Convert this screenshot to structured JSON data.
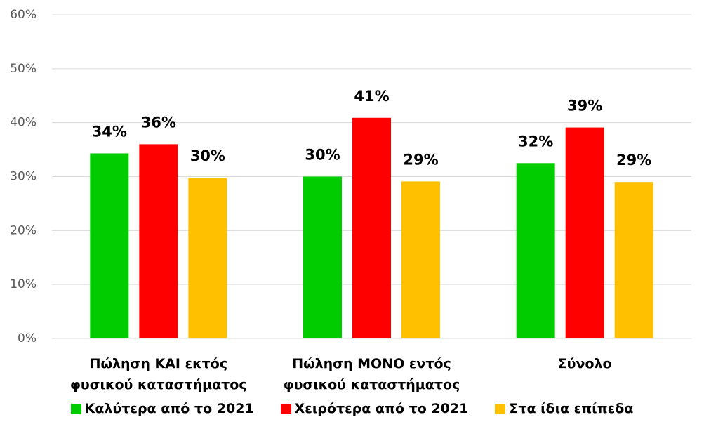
{
  "chart_data": {
    "type": "bar",
    "categories": [
      "Πώληση ΚΑΙ εκτός φυσικού καταστήματος",
      "Πώληση ΜΟΝΟ εντός φυσικού καταστήματος",
      "Σύνολο"
    ],
    "series": [
      {
        "name": "Καλύτερα από το 2021",
        "color": "#00cc00",
        "values": [
          34.3,
          30,
          32.5
        ],
        "value_labels": [
          "34%",
          "30%",
          "32%"
        ]
      },
      {
        "name": "Χειρότερα από το 2021",
        "color": "#ff0000",
        "values": [
          36,
          40.9,
          39.1
        ],
        "value_labels": [
          "36%",
          "41%",
          "39%"
        ]
      },
      {
        "name": "Στα ίδια επίπεδα",
        "color": "#ffc000",
        "values": [
          29.8,
          29.1,
          29
        ],
        "value_labels": [
          "30%",
          "29%",
          "29%"
        ]
      }
    ],
    "ylim": [
      0,
      60
    ],
    "yticks": [
      {
        "value": 0,
        "label": "0%"
      },
      {
        "value": 10,
        "label": "10%"
      },
      {
        "value": 20,
        "label": "20%"
      },
      {
        "value": 30,
        "label": "30%"
      },
      {
        "value": 40,
        "label": "40%"
      },
      {
        "value": 50,
        "label": "50%"
      },
      {
        "value": 60,
        "label": "60%"
      }
    ],
    "grid": true,
    "legend": "bottom"
  }
}
